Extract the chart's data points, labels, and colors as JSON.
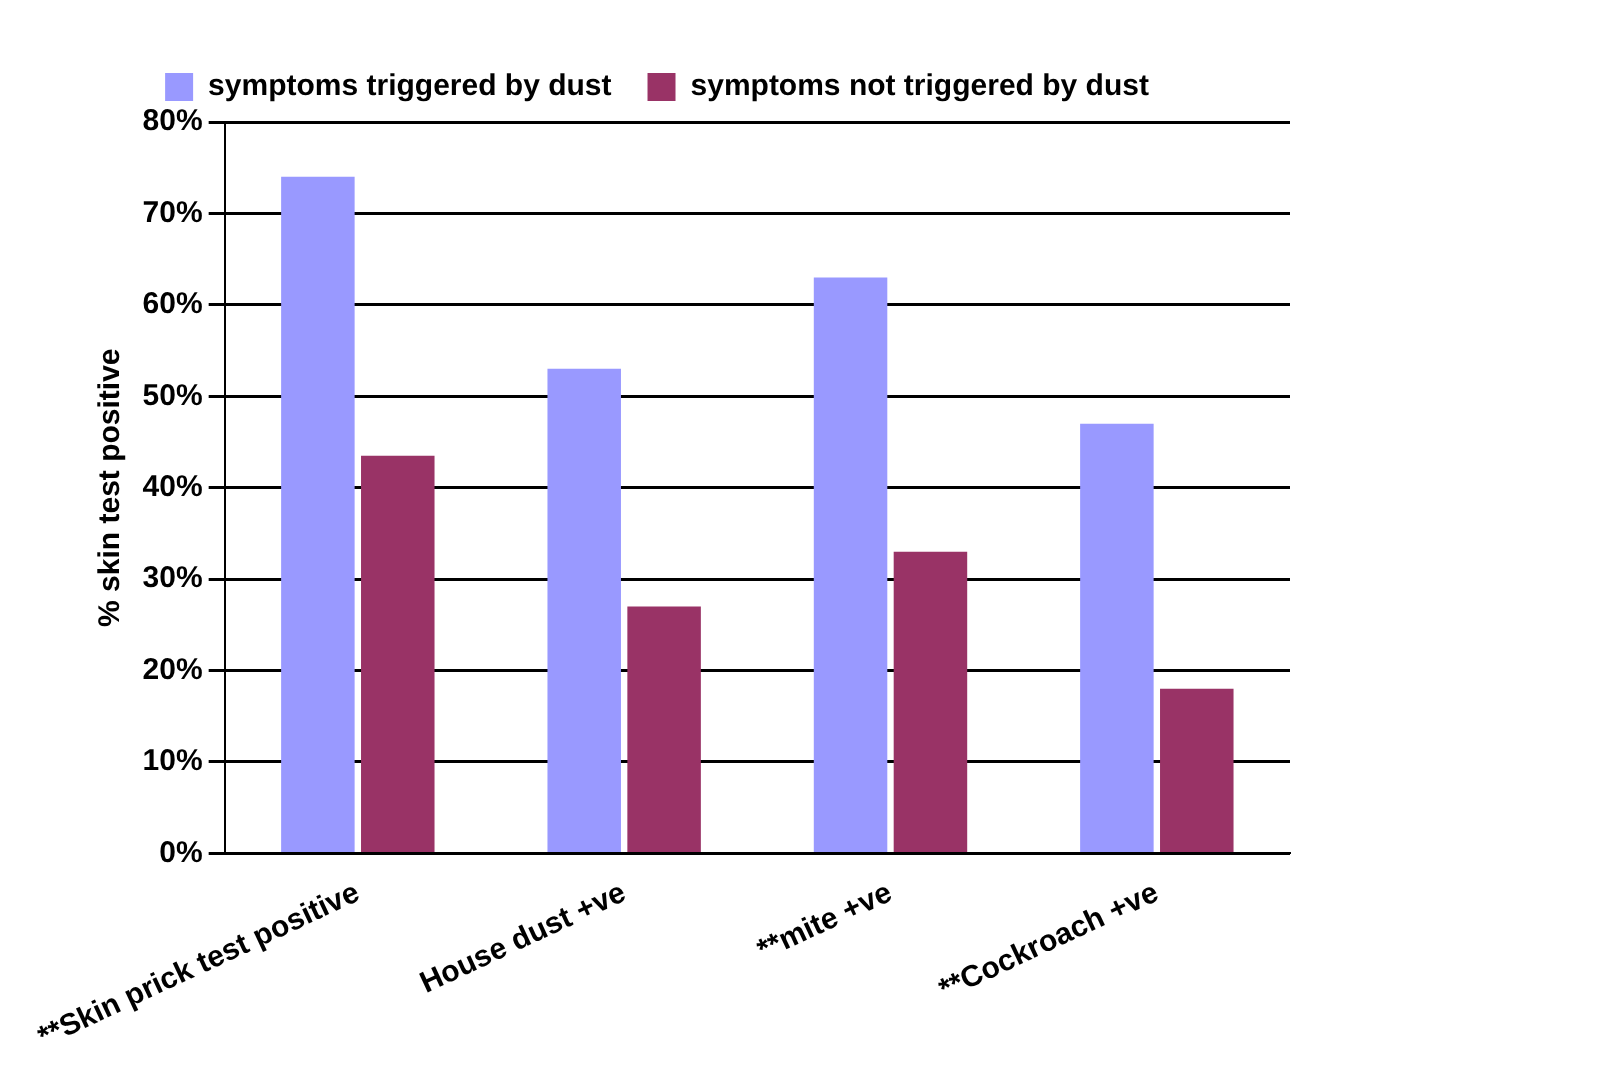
{
  "chart_data": {
    "type": "bar",
    "ylabel": "% skin test positive",
    "categories": [
      "**Skin prick test positive",
      "House dust +ve",
      "**mite +ve",
      "**Cockroach +ve"
    ],
    "series": [
      {
        "name": "symptoms triggered by dust",
        "color": "#9999ff",
        "values": [
          74,
          53,
          63,
          47
        ]
      },
      {
        "name": "symptoms not triggered by dust",
        "color": "#993366",
        "values": [
          43.5,
          27,
          33,
          18
        ]
      }
    ],
    "ylim": [
      0,
      80
    ],
    "yticks": [
      {
        "value": 0,
        "label": "0%"
      },
      {
        "value": 10,
        "label": "10%"
      },
      {
        "value": 20,
        "label": "20%"
      },
      {
        "value": 30,
        "label": "30%"
      },
      {
        "value": 40,
        "label": "40%"
      },
      {
        "value": 50,
        "label": "50%"
      },
      {
        "value": 60,
        "label": "60%"
      },
      {
        "value": 70,
        "label": "70%"
      },
      {
        "value": 80,
        "label": "80%"
      }
    ],
    "grid": "y",
    "legend": "top"
  }
}
